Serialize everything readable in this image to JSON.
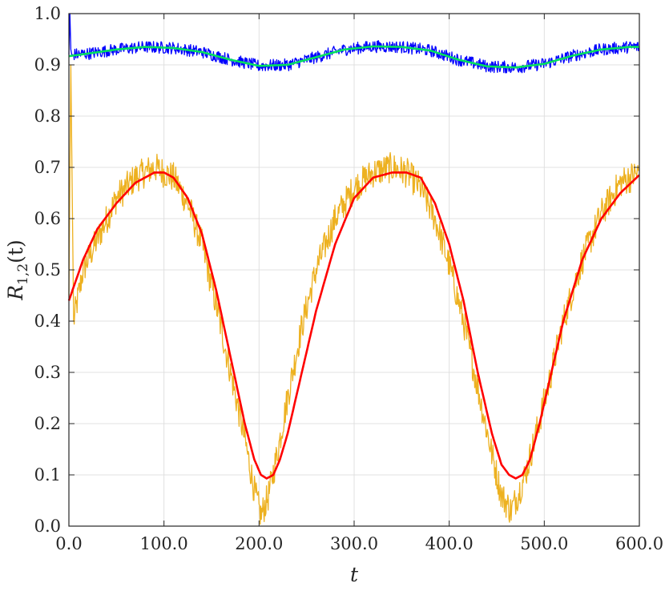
{
  "chart_data": {
    "type": "line",
    "title": "",
    "xlabel": "t",
    "ylabel": {
      "main": "R",
      "sub": "1,2",
      "arg": "(t)"
    },
    "xlim": [
      0,
      600
    ],
    "ylim": [
      0,
      1
    ],
    "grid": true,
    "legend": "none",
    "xticks": [
      0,
      100,
      200,
      300,
      400,
      500,
      600
    ],
    "xtick_labels": [
      "0.0",
      "100.0",
      "200.0",
      "300.0",
      "400.0",
      "500.0",
      "600.0"
    ],
    "yticks": [
      0,
      0.1,
      0.2,
      0.3,
      0.4,
      0.5,
      0.6,
      0.7,
      0.8,
      0.9,
      1.0
    ],
    "ytick_labels": [
      "0.0",
      "0.1",
      "0.2",
      "0.3",
      "0.4",
      "0.5",
      "0.6",
      "0.7",
      "0.8",
      "0.9",
      "1.0"
    ],
    "series": [
      {
        "color": "#edb120",
        "style": "noisy",
        "x": [
          0,
          2,
          5,
          15,
          30,
          50,
          70,
          90,
          110,
          125,
          140,
          155,
          170,
          185,
          195,
          202,
          210,
          220,
          230,
          245,
          260,
          280,
          300,
          320,
          340,
          355,
          370,
          385,
          400,
          415,
          430,
          445,
          455,
          465,
          472,
          480,
          490,
          505,
          520,
          540,
          560,
          580,
          600
        ],
        "y": [
          0.45,
          0.9,
          0.4,
          0.5,
          0.56,
          0.64,
          0.68,
          0.7,
          0.68,
          0.63,
          0.55,
          0.43,
          0.3,
          0.17,
          0.07,
          0.02,
          0.06,
          0.15,
          0.25,
          0.39,
          0.5,
          0.6,
          0.66,
          0.69,
          0.7,
          0.69,
          0.66,
          0.6,
          0.51,
          0.4,
          0.27,
          0.14,
          0.06,
          0.03,
          0.06,
          0.1,
          0.17,
          0.28,
          0.4,
          0.52,
          0.61,
          0.67,
          0.69
        ]
      },
      {
        "color": "#ff0000",
        "style": "smooth",
        "x": [
          0,
          15,
          30,
          50,
          70,
          90,
          100,
          110,
          125,
          140,
          155,
          170,
          185,
          195,
          202,
          208,
          215,
          222,
          230,
          245,
          260,
          280,
          300,
          320,
          340,
          355,
          370,
          385,
          400,
          415,
          430,
          445,
          455,
          463,
          470,
          477,
          485,
          495,
          505,
          520,
          540,
          560,
          580,
          600
        ],
        "y": [
          0.44,
          0.52,
          0.58,
          0.63,
          0.67,
          0.69,
          0.69,
          0.68,
          0.64,
          0.57,
          0.46,
          0.33,
          0.2,
          0.13,
          0.1,
          0.093,
          0.1,
          0.13,
          0.18,
          0.3,
          0.42,
          0.55,
          0.64,
          0.68,
          0.69,
          0.69,
          0.68,
          0.63,
          0.55,
          0.44,
          0.3,
          0.18,
          0.12,
          0.1,
          0.093,
          0.1,
          0.13,
          0.2,
          0.28,
          0.4,
          0.52,
          0.6,
          0.65,
          0.685
        ]
      },
      {
        "color": "#0000ff",
        "style": "noisy",
        "x": [
          0,
          1,
          2,
          3,
          20,
          50,
          80,
          110,
          140,
          170,
          200,
          230,
          260,
          290,
          320,
          350,
          380,
          410,
          440,
          470,
          500,
          530,
          560,
          590,
          600
        ],
        "y": [
          0.92,
          1.0,
          0.93,
          0.92,
          0.922,
          0.93,
          0.935,
          0.933,
          0.925,
          0.91,
          0.898,
          0.9,
          0.915,
          0.93,
          0.936,
          0.935,
          0.928,
          0.91,
          0.897,
          0.895,
          0.902,
          0.918,
          0.93,
          0.935,
          0.935
        ]
      },
      {
        "color": "#00e060",
        "style": "smooth",
        "x": [
          0,
          20,
          50,
          80,
          110,
          140,
          170,
          200,
          230,
          260,
          290,
          320,
          350,
          380,
          410,
          440,
          470,
          500,
          530,
          560,
          590,
          600
        ],
        "y": [
          0.917,
          0.922,
          0.93,
          0.935,
          0.933,
          0.925,
          0.91,
          0.898,
          0.9,
          0.915,
          0.93,
          0.936,
          0.935,
          0.928,
          0.91,
          0.897,
          0.895,
          0.902,
          0.918,
          0.93,
          0.935,
          0.935
        ]
      }
    ]
  }
}
